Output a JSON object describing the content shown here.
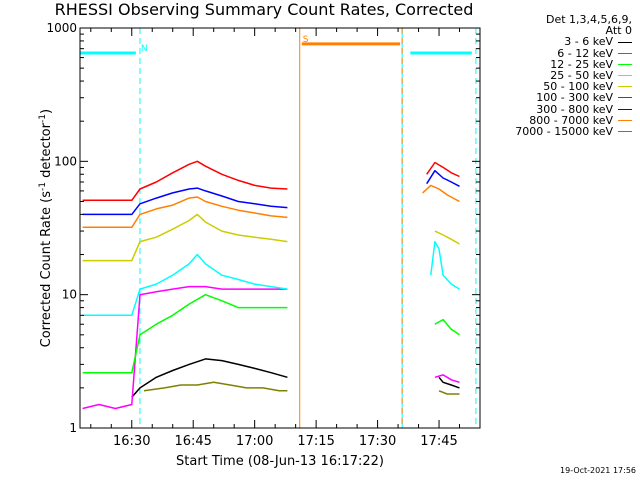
{
  "chart_data": {
    "type": "line",
    "title": "RHESSI Observing Summary Count Rates, Corrected",
    "xlabel": "Start Time (08-Jun-13 16:17:22)",
    "ylabel_parts": [
      "Corrected Count Rate (s",
      "-1",
      " detector",
      "-1",
      ")"
    ],
    "yscale": "log",
    "ylim": [
      1,
      1000
    ],
    "xlim": [
      "16:17:22",
      "17:55:00"
    ],
    "x_ticks": [
      "16:30",
      "16:45",
      "17:00",
      "17:15",
      "17:30",
      "17:45"
    ],
    "y_ticks": [
      "1",
      "10",
      "100",
      "1000"
    ],
    "legend_header": [
      "Det 1,3,4,5,6,9,",
      "Att 0"
    ],
    "series": [
      {
        "name": "3 - 6 keV",
        "color": "#000000",
        "segments": [
          {
            "x": [
              "16:30:00",
              "16:32:00",
              "16:36:00",
              "16:40:00",
              "16:44:00",
              "16:48:00",
              "16:52:00",
              "16:56:00",
              "17:00:00",
              "17:04:00",
              "17:08:00"
            ],
            "y": [
              1.7,
              2.0,
              2.4,
              2.7,
              3.0,
              3.3,
              3.2,
              3.0,
              2.8,
              2.6,
              2.4
            ]
          },
          {
            "x": [
              "17:45:00",
              "17:46:00",
              "17:48:00",
              "17:50:00"
            ],
            "y": [
              2.4,
              2.2,
              2.1,
              2.0
            ]
          }
        ]
      },
      {
        "name": "6 - 12 keV",
        "color": "#ff00ff",
        "segments": [
          {
            "x": [
              "16:18:00",
              "16:22:00",
              "16:26:00",
              "16:30:00",
              "16:32:00",
              "16:36:00",
              "16:40:00",
              "16:44:00",
              "16:48:00",
              "16:52:00",
              "16:56:00",
              "17:00:00",
              "17:04:00",
              "17:08:00"
            ],
            "y": [
              1.4,
              1.5,
              1.4,
              1.5,
              10.0,
              10.5,
              11.0,
              11.5,
              11.5,
              11.0,
              11.0,
              11.0,
              11.0,
              11.0
            ]
          },
          {
            "x": [
              "17:44:00",
              "17:46:00",
              "17:48:00",
              "17:50:00"
            ],
            "y": [
              2.4,
              2.5,
              2.3,
              2.2
            ]
          }
        ]
      },
      {
        "name": "12 - 25 keV",
        "color": "#00ff00",
        "segments": [
          {
            "x": [
              "16:18:00",
              "16:22:00",
              "16:26:00",
              "16:30:00",
              "16:32:00",
              "16:36:00",
              "16:40:00",
              "16:44:00",
              "16:48:00",
              "16:52:00",
              "16:56:00",
              "17:00:00",
              "17:04:00",
              "17:08:00"
            ],
            "y": [
              2.6,
              2.6,
              2.6,
              2.6,
              5.0,
              6.0,
              7.0,
              8.5,
              10.0,
              9.0,
              8.0,
              8.0,
              8.0,
              8.0
            ]
          },
          {
            "x": [
              "17:44:00",
              "17:46:00",
              "17:48:00",
              "17:50:00"
            ],
            "y": [
              6.0,
              6.5,
              5.5,
              5.0
            ]
          }
        ]
      },
      {
        "name": "25 - 50 keV",
        "color": "#00ffff",
        "segments": [
          {
            "x": [
              "16:18:00",
              "16:22:00",
              "16:26:00",
              "16:30:00",
              "16:32:00",
              "16:36:00",
              "16:40:00",
              "16:44:00",
              "16:46:00",
              "16:48:00",
              "16:52:00",
              "16:56:00",
              "17:00:00",
              "17:04:00",
              "17:08:00"
            ],
            "y": [
              7.0,
              7.0,
              7.0,
              7.0,
              11.0,
              12.0,
              14.0,
              17.0,
              20.0,
              17.0,
              14.0,
              13.0,
              12.0,
              11.5,
              11.0
            ]
          },
          {
            "x": [
              "17:43:00",
              "17:44:00",
              "17:45:00",
              "17:46:00",
              "17:48:00",
              "17:50:00"
            ],
            "y": [
              14.0,
              25.0,
              22.0,
              14.0,
              12.0,
              11.0
            ]
          }
        ]
      },
      {
        "name": "50 - 100 keV",
        "color": "#cccc00",
        "segments": [
          {
            "x": [
              "16:18:00",
              "16:22:00",
              "16:26:00",
              "16:30:00",
              "16:32:00",
              "16:36:00",
              "16:40:00",
              "16:44:00",
              "16:46:00",
              "16:48:00",
              "16:52:00",
              "16:56:00",
              "17:00:00",
              "17:04:00",
              "17:08:00"
            ],
            "y": [
              18.0,
              18.0,
              18.0,
              18.0,
              25.0,
              27.0,
              31.0,
              36.0,
              40.0,
              35.0,
              30.0,
              28.0,
              27.0,
              26.0,
              25.0
            ]
          },
          {
            "x": [
              "17:44:00",
              "17:46:00",
              "17:48:00",
              "17:50:00"
            ],
            "y": [
              30.0,
              28.0,
              26.0,
              24.0
            ]
          }
        ]
      },
      {
        "name": "100 - 300 keV",
        "color": "#ff0000",
        "segments": [
          {
            "x": [
              "16:18:00",
              "16:22:00",
              "16:26:00",
              "16:30:00",
              "16:32:00",
              "16:36:00",
              "16:40:00",
              "16:44:00",
              "16:46:00",
              "16:48:00",
              "16:52:00",
              "16:56:00",
              "17:00:00",
              "17:04:00",
              "17:08:00"
            ],
            "y": [
              51.0,
              51.0,
              51.0,
              51.0,
              62.0,
              70.0,
              82.0,
              95.0,
              100.0,
              92.0,
              80.0,
              72.0,
              66.0,
              63.0,
              62.0
            ]
          },
          {
            "x": [
              "17:42:00",
              "17:44:00",
              "17:46:00",
              "17:48:00",
              "17:50:00"
            ],
            "y": [
              80.0,
              98.0,
              90.0,
              82.0,
              77.0
            ]
          }
        ]
      },
      {
        "name": "300 - 800 keV",
        "color": "#0000ff",
        "segments": [
          {
            "x": [
              "16:18:00",
              "16:22:00",
              "16:26:00",
              "16:30:00",
              "16:32:00",
              "16:36:00",
              "16:40:00",
              "16:44:00",
              "16:46:00",
              "16:48:00",
              "16:52:00",
              "16:56:00",
              "17:00:00",
              "17:04:00",
              "17:08:00"
            ],
            "y": [
              40.0,
              40.0,
              40.0,
              40.0,
              48.0,
              53.0,
              58.0,
              62.0,
              63.0,
              60.0,
              55.0,
              50.0,
              48.0,
              46.0,
              45.0
            ]
          },
          {
            "x": [
              "17:42:00",
              "17:44:00",
              "17:46:00",
              "17:48:00",
              "17:50:00"
            ],
            "y": [
              68.0,
              85.0,
              75.0,
              70.0,
              65.0
            ]
          }
        ]
      },
      {
        "name": "800 - 7000 keV",
        "color": "#ff8000",
        "segments": [
          {
            "x": [
              "16:18:00",
              "16:22:00",
              "16:26:00",
              "16:30:00",
              "16:32:00",
              "16:36:00",
              "16:40:00",
              "16:44:00",
              "16:46:00",
              "16:48:00",
              "16:52:00",
              "16:56:00",
              "17:00:00",
              "17:04:00",
              "17:08:00"
            ],
            "y": [
              32.0,
              32.0,
              32.0,
              32.0,
              40.0,
              44.0,
              47.0,
              53.0,
              54.0,
              50.0,
              46.0,
              43.0,
              41.0,
              39.0,
              38.0
            ]
          },
          {
            "x": [
              "17:41:00",
              "17:43:00",
              "17:45:00",
              "17:47:00",
              "17:50:00"
            ],
            "y": [
              58.0,
              66.0,
              62.0,
              56.0,
              50.0
            ]
          }
        ]
      },
      {
        "name": "7000 - 15000 keV",
        "color": "#808000",
        "segments": [
          {
            "x": [
              "16:33:00",
              "16:38:00",
              "16:42:00",
              "16:46:00",
              "16:50:00",
              "16:54:00",
              "16:58:00",
              "17:02:00",
              "17:06:00",
              "17:08:00"
            ],
            "y": [
              1.9,
              2.0,
              2.1,
              2.1,
              2.2,
              2.1,
              2.0,
              2.0,
              1.9,
              1.9
            ]
          },
          {
            "x": [
              "17:45:00",
              "17:47:00",
              "17:50:00"
            ],
            "y": [
              1.9,
              1.8,
              1.8
            ]
          }
        ]
      }
    ],
    "flags": [
      {
        "label": "N",
        "color": "#00ffff",
        "label_x": "16:31:30",
        "bars": [
          [
            "16:17:22",
            "16:31:00"
          ],
          [
            "17:38:00",
            "17:53:00"
          ]
        ],
        "bar_y": 650,
        "vlines": [
          "16:17:22",
          "16:32:00",
          "17:36:00",
          "17:54:00"
        ]
      },
      {
        "label": "S",
        "color": "#ff8000",
        "label_x": "17:11:00",
        "bars": [
          [
            "17:11:30",
            "17:35:30"
          ]
        ],
        "bar_y": 760,
        "vlines": [
          "17:11:00",
          "17:36:00"
        ]
      }
    ],
    "footer_stamp": "19-Oct-2021 17:56"
  }
}
